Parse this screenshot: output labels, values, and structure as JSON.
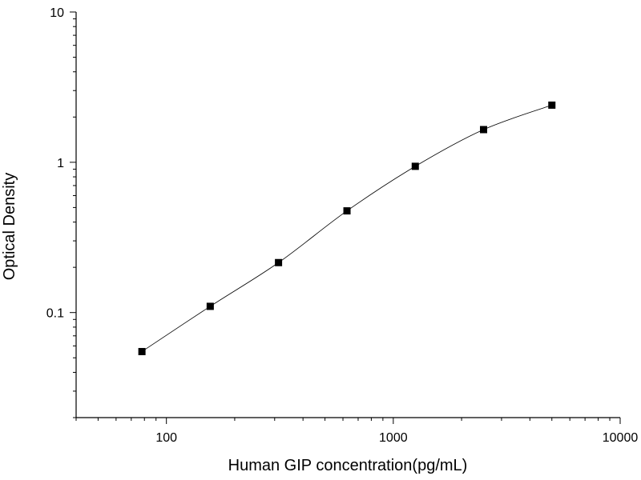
{
  "chart_data": {
    "type": "scatter",
    "title": "",
    "xlabel": "Human GIP concentration(pg/mL)",
    "ylabel": "Optical Density",
    "x_scale": "log",
    "y_scale": "log",
    "xlim": [
      40,
      10000
    ],
    "ylim": [
      0.02,
      10
    ],
    "x_ticks": [
      "100",
      "1000",
      "10000"
    ],
    "y_ticks": [
      "0.1",
      "1",
      "10"
    ],
    "grid": false,
    "legend": "none",
    "series": [
      {
        "x": [
          78,
          156,
          312,
          625,
          1250,
          2500,
          5000
        ],
        "y": [
          0.055,
          0.11,
          0.215,
          0.475,
          0.94,
          1.65,
          2.4
        ]
      }
    ],
    "fit_curve": true,
    "marker_color": "#000000",
    "curve_color": "#000000"
  }
}
